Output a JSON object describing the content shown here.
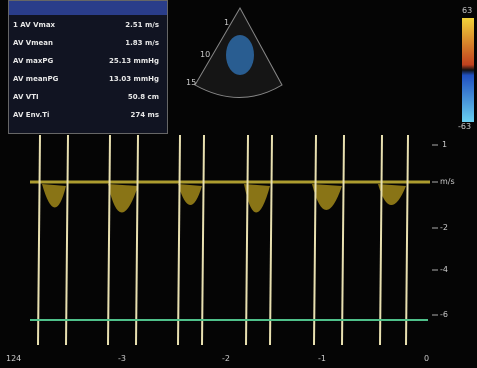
{
  "measurements": {
    "rows": [
      {
        "label": "1  AV Vmax",
        "value": "2.51 m/s"
      },
      {
        "label": "AV Vmean",
        "value": "1.83 m/s"
      },
      {
        "label": "AV maxPG",
        "value": "25.13 mmHg"
      },
      {
        "label": "AV meanPG",
        "value": "13.03 mmHg"
      },
      {
        "label": "AV VTI",
        "value": "50.8 cm"
      },
      {
        "label": "AV Env.Ti",
        "value": "274 ms"
      }
    ]
  },
  "thumbnail": {
    "labels": [
      "1",
      "10",
      "15"
    ]
  },
  "color_scale": {
    "top": "63",
    "bottom": "-63"
  },
  "velocity_scale": {
    "labels": [
      "1",
      "m/s",
      "-2",
      "-4",
      "-6"
    ]
  },
  "time_scale": {
    "labels": [
      "124",
      "-3",
      "-2",
      "-1",
      "0"
    ]
  }
}
